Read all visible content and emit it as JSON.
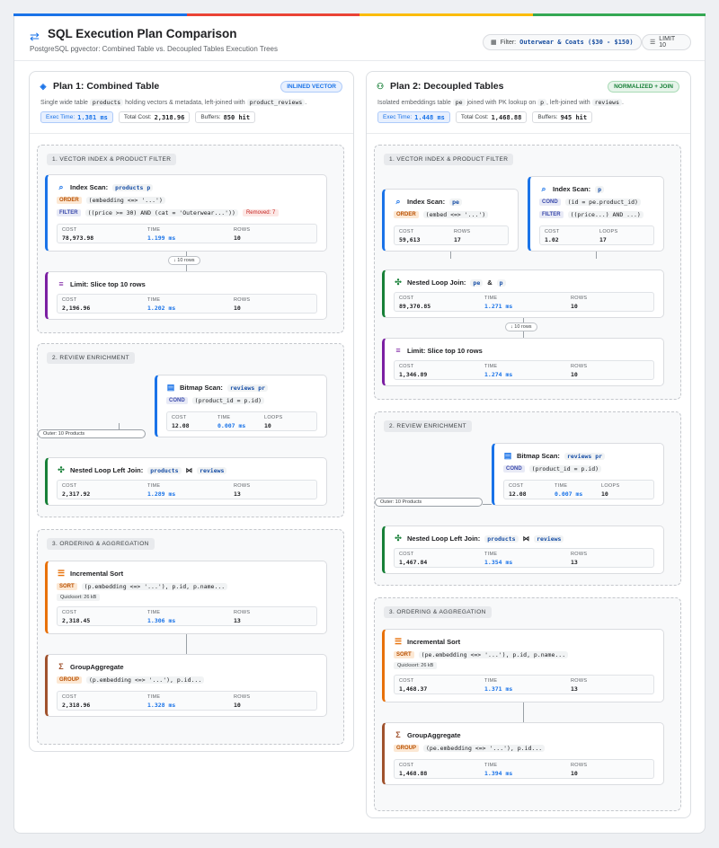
{
  "header": {
    "title": "SQL Execution Plan Comparison",
    "subtitle": "PostgreSQL pgvector: Combined Table vs. Decoupled Tables Execution Trees",
    "filter_label": "Filter:",
    "filter_value": "Outerwear & Coats ($30 - $150)",
    "limit_label": "LIMIT 10"
  },
  "colors": {
    "blue": "#1a73e8",
    "red": "#ea4335",
    "yellow": "#fbbc04",
    "green": "#34a853",
    "purple": "#7b1fa2",
    "orange": "#e8710a",
    "brown": "#a0522d"
  },
  "plan1": {
    "title": "Plan 1: Combined Table",
    "badge": "INLINED VECTOR",
    "desc_pre": "Single wide table",
    "desc_code1": "products",
    "desc_mid": "holding vectors & metadata, left-joined with",
    "desc_code2": "product_reviews",
    "desc_post": ".",
    "exec_label": "Exec Time:",
    "exec_value": "1.381 ms",
    "cost_label": "Total Cost:",
    "cost_value": "2,318.96",
    "buf_label": "Buffers:",
    "buf_value": "850 hit",
    "s1": "1. VECTOR INDEX & PRODUCT FILTER",
    "s2": "2. REVIEW ENRICHMENT",
    "s3": "3. ORDERING & AGGREGATION",
    "idx": {
      "title": "Index Scan:",
      "table": "products p",
      "order_tag": "ORDER",
      "order": "(embedding <=> '...')",
      "filter_tag": "FILTER",
      "filter": "((price >= 30) AND (cat = 'Outerwear...'))",
      "removed": "Removed: 7",
      "cost": "78,973.98",
      "time": "1.199 ms",
      "rows": "10"
    },
    "rows_pill": "↓ 10 rows",
    "limit": {
      "title": "Limit: Slice top 10 rows",
      "cost": "2,196.96",
      "time": "1.202 ms",
      "rows": "10"
    },
    "bitmap": {
      "title": "Bitmap Scan:",
      "table": "reviews pr",
      "cond_tag": "COND",
      "cond": "(product_id = p.id)",
      "cost": "12.08",
      "time": "0.007 ms",
      "loops": "10"
    },
    "outer": "Outer: 10 Products",
    "nlj": {
      "title": "Nested Loop Left Join:",
      "t1": "products",
      "join": "⋈",
      "t2": "reviews",
      "cost": "2,317.92",
      "time": "1.289 ms",
      "rows": "13"
    },
    "isort": {
      "title": "Incremental Sort",
      "sort_tag": "SORT",
      "sort": "(p.embedding <=> '...'), p.id, p.name...",
      "mem": "Quicksort: 26 kB",
      "cost": "2,318.45",
      "time": "1.306 ms",
      "rows": "13"
    },
    "gagg": {
      "title": "GroupAggregate",
      "group_tag": "GROUP",
      "group": "(p.embedding <=> '...'), p.id...",
      "cost": "2,318.96",
      "time": "1.328 ms",
      "rows": "10"
    }
  },
  "plan2": {
    "title": "Plan 2: Decoupled Tables",
    "badge": "NORMALIZED + JOIN",
    "desc_pre": "Isolated embeddings table",
    "desc_code1": "pe",
    "desc_mid": "joined with PK lookup on",
    "desc_code2": "p",
    "desc_mid2": ", left-joined with",
    "desc_code3": "reviews",
    "desc_post": ".",
    "exec_label": "Exec Time:",
    "exec_value": "1.448 ms",
    "cost_label": "Total Cost:",
    "cost_value": "1,468.88",
    "buf_label": "Buffers:",
    "buf_value": "945 hit",
    "s1": "1. VECTOR INDEX & PRODUCT FILTER",
    "s2": "2. REVIEW ENRICHMENT",
    "s3": "3. ORDERING & AGGREGATION",
    "idx1": {
      "title": "Index Scan:",
      "table": "pe",
      "order_tag": "ORDER",
      "order": "(embed <=> '...')",
      "cost": "59,613",
      "rows": "17"
    },
    "idx2": {
      "title": "Index Scan:",
      "table": "p",
      "cond_tag": "COND",
      "cond": "(id = pe.product_id)",
      "filter_tag": "FILTER",
      "filter": "((price...) AND ...)",
      "cost": "1.02",
      "loops": "17"
    },
    "nlj1": {
      "title": "Nested Loop Join:",
      "t1": "pe",
      "amp": "&",
      "t2": "p",
      "cost": "89,370.85",
      "time": "1.271 ms",
      "rows": "10"
    },
    "rows_pill": "↓ 10 rows",
    "limit": {
      "title": "Limit: Slice top 10 rows",
      "cost": "1,346.89",
      "time": "1.274 ms",
      "rows": "10"
    },
    "bitmap": {
      "title": "Bitmap Scan:",
      "table": "reviews pr",
      "cond_tag": "COND",
      "cond": "(product_id = p.id)",
      "cost": "12.08",
      "time": "0.007 ms",
      "loops": "10"
    },
    "outer": "Outer: 10 Products",
    "nlj2": {
      "title": "Nested Loop Left Join:",
      "t1": "products",
      "join": "⋈",
      "t2": "reviews",
      "cost": "1,467.84",
      "time": "1.354 ms",
      "rows": "13"
    },
    "isort": {
      "title": "Incremental Sort",
      "sort_tag": "SORT",
      "sort": "(pe.embedding <=> '...'), p.id, p.name...",
      "mem": "Quicksort: 26 kB",
      "cost": "1,468.37",
      "time": "1.371 ms",
      "rows": "13"
    },
    "gagg": {
      "title": "GroupAggregate",
      "group_tag": "GROUP",
      "group": "(pe.embedding <=> '...'), p.id...",
      "cost": "1,468.88",
      "time": "1.394 ms",
      "rows": "10"
    }
  },
  "labels": {
    "cost": "COST",
    "time": "TIME",
    "rows": "ROWS",
    "loops": "LOOPS"
  }
}
